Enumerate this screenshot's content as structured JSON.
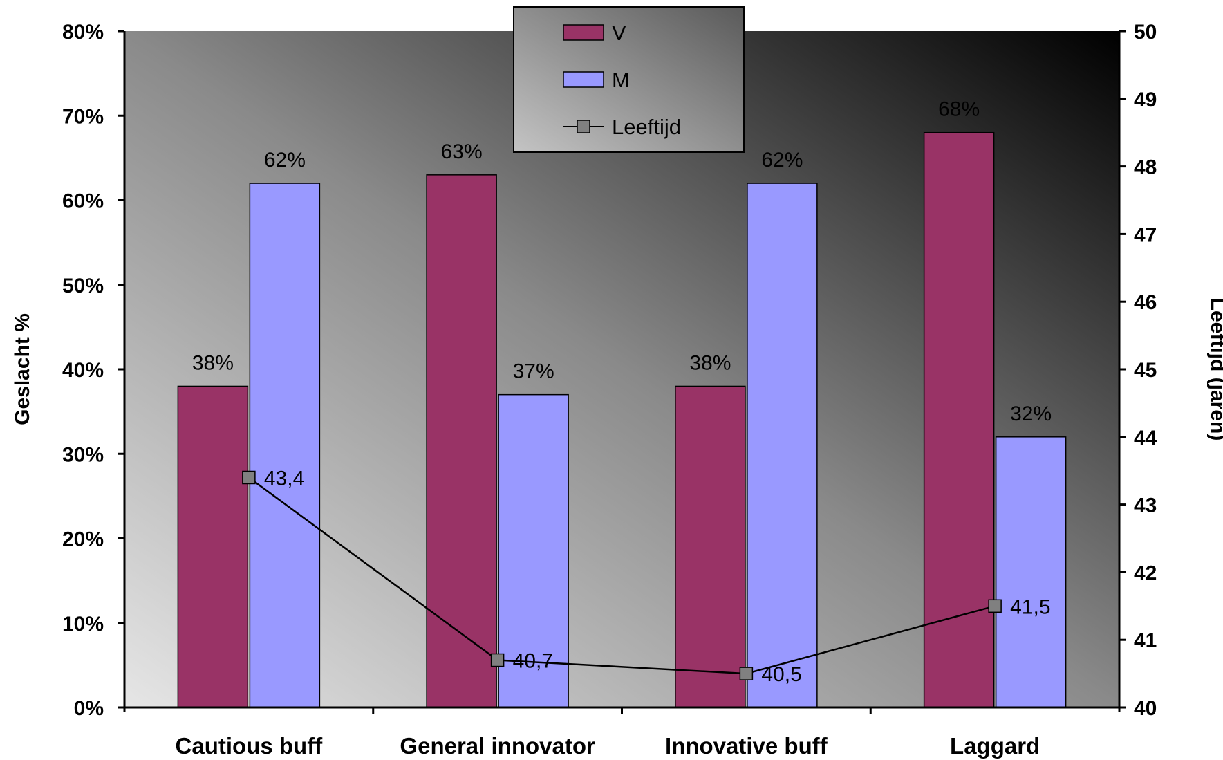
{
  "chart_data": {
    "type": "bar",
    "categories": [
      "Cautious buff",
      "General innovator",
      "Innovative buff",
      "Laggard"
    ],
    "series": [
      {
        "name": "V",
        "type": "bar",
        "axis": "left",
        "color": "#993366",
        "values": [
          38,
          63,
          38,
          68
        ],
        "labels": [
          "38%",
          "63%",
          "38%",
          "68%"
        ]
      },
      {
        "name": "M",
        "type": "bar",
        "axis": "left",
        "color": "#9999FF",
        "values": [
          62,
          37,
          62,
          32
        ],
        "labels": [
          "62%",
          "37%",
          "62%",
          "32%"
        ]
      },
      {
        "name": "Leeftijd",
        "type": "line",
        "axis": "right",
        "color": "#000000",
        "marker_color": "#808080",
        "values": [
          43.4,
          40.7,
          40.5,
          41.5
        ],
        "labels": [
          "43,4",
          "40,7",
          "40,5",
          "41,5"
        ]
      }
    ],
    "ylabel": "Geslacht %",
    "ylabel_right": "Leeftijd (jaren)",
    "ylim": [
      0,
      80
    ],
    "ylim_right": [
      40,
      50
    ],
    "yticks": [
      "0%",
      "10%",
      "20%",
      "30%",
      "40%",
      "50%",
      "60%",
      "70%",
      "80%"
    ],
    "yticks_right": [
      "40",
      "41",
      "42",
      "43",
      "44",
      "45",
      "46",
      "47",
      "48",
      "49",
      "50"
    ],
    "legend": "top-center",
    "grid": false,
    "background": "gradient"
  }
}
